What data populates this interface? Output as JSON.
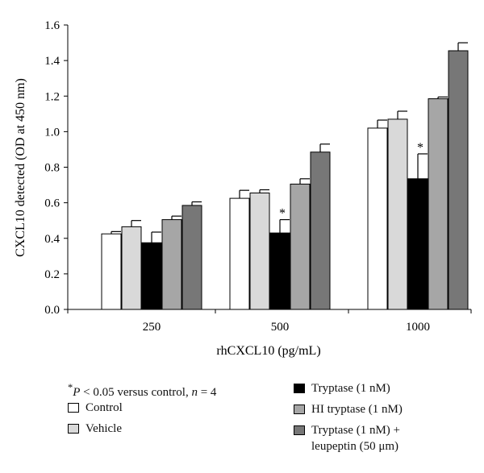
{
  "chart_data": {
    "type": "bar",
    "xlabel": "rhCXCL10 (pg/mL)",
    "ylabel": "CXCL10 detected (OD at 450 nm)",
    "ylim": [
      0,
      1.6
    ],
    "yticks": [
      "0.0",
      "0.2",
      "0.4",
      "0.6",
      "0.8",
      "1.0",
      "1.2",
      "1.4",
      "1.6"
    ],
    "categories": [
      "250",
      "500",
      "1000"
    ],
    "series": [
      {
        "name": "Control",
        "color": "#ffffff",
        "values": [
          0.425,
          0.625,
          1.02
        ],
        "errors": [
          0.013,
          0.045,
          0.045
        ]
      },
      {
        "name": "Vehicle",
        "color": "#d9d9d9",
        "values": [
          0.465,
          0.655,
          1.07
        ],
        "errors": [
          0.035,
          0.018,
          0.045
        ]
      },
      {
        "name": "Tryptase (1 nM)",
        "color": "#000000",
        "values": [
          0.375,
          0.43,
          0.735
        ],
        "errors": [
          0.06,
          0.075,
          0.14
        ],
        "significant": [
          false,
          true,
          true
        ]
      },
      {
        "name": "HI tryptase (1 nM)",
        "color": "#a6a6a6",
        "values": [
          0.505,
          0.705,
          1.185
        ],
        "errors": [
          0.02,
          0.03,
          0.01
        ]
      },
      {
        "name": "Tryptase (1 nM) +",
        "name_line2": "leupeptin (50 μm)",
        "color": "#777777",
        "values": [
          0.585,
          0.885,
          1.455
        ],
        "errors": [
          0.02,
          0.045,
          0.045
        ]
      }
    ],
    "significance_marker": "*"
  },
  "footnote": {
    "star": "*",
    "p": "P",
    "text1": " <  0.05 versus control, ",
    "n": "n",
    "text2": " = 4"
  }
}
